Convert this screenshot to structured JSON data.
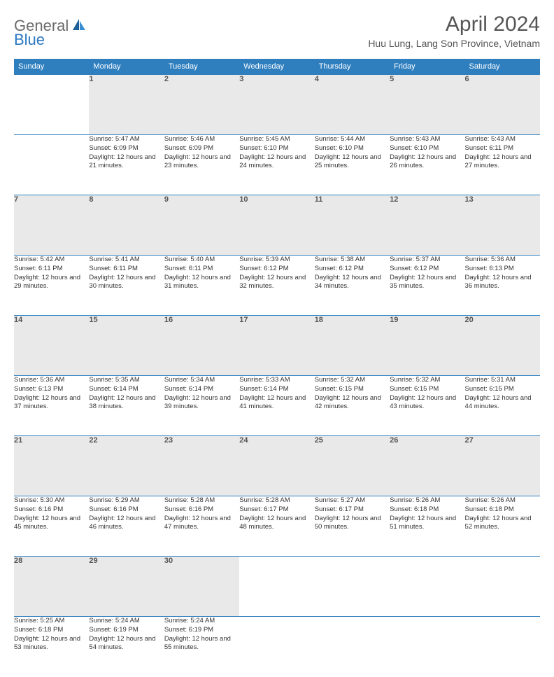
{
  "logo": {
    "general": "General",
    "blue": "Blue"
  },
  "title": "April 2024",
  "location": "Huu Lung, Lang Son Province, Vietnam",
  "colors": {
    "header_bg": "#2f7fbf",
    "header_text": "#ffffff",
    "daynum_bg": "#e9e9e9",
    "border": "#2f7fbf",
    "title_color": "#555555",
    "logo_gray": "#6a6a6a",
    "logo_blue": "#2b78c2"
  },
  "dayNames": [
    "Sunday",
    "Monday",
    "Tuesday",
    "Wednesday",
    "Thursday",
    "Friday",
    "Saturday"
  ],
  "weeks": [
    [
      null,
      {
        "n": "1",
        "sr": "5:47 AM",
        "ss": "6:09 PM",
        "dl": "12 hours and 21 minutes."
      },
      {
        "n": "2",
        "sr": "5:46 AM",
        "ss": "6:09 PM",
        "dl": "12 hours and 23 minutes."
      },
      {
        "n": "3",
        "sr": "5:45 AM",
        "ss": "6:10 PM",
        "dl": "12 hours and 24 minutes."
      },
      {
        "n": "4",
        "sr": "5:44 AM",
        "ss": "6:10 PM",
        "dl": "12 hours and 25 minutes."
      },
      {
        "n": "5",
        "sr": "5:43 AM",
        "ss": "6:10 PM",
        "dl": "12 hours and 26 minutes."
      },
      {
        "n": "6",
        "sr": "5:43 AM",
        "ss": "6:11 PM",
        "dl": "12 hours and 27 minutes."
      }
    ],
    [
      {
        "n": "7",
        "sr": "5:42 AM",
        "ss": "6:11 PM",
        "dl": "12 hours and 29 minutes."
      },
      {
        "n": "8",
        "sr": "5:41 AM",
        "ss": "6:11 PM",
        "dl": "12 hours and 30 minutes."
      },
      {
        "n": "9",
        "sr": "5:40 AM",
        "ss": "6:11 PM",
        "dl": "12 hours and 31 minutes."
      },
      {
        "n": "10",
        "sr": "5:39 AM",
        "ss": "6:12 PM",
        "dl": "12 hours and 32 minutes."
      },
      {
        "n": "11",
        "sr": "5:38 AM",
        "ss": "6:12 PM",
        "dl": "12 hours and 34 minutes."
      },
      {
        "n": "12",
        "sr": "5:37 AM",
        "ss": "6:12 PM",
        "dl": "12 hours and 35 minutes."
      },
      {
        "n": "13",
        "sr": "5:36 AM",
        "ss": "6:13 PM",
        "dl": "12 hours and 36 minutes."
      }
    ],
    [
      {
        "n": "14",
        "sr": "5:36 AM",
        "ss": "6:13 PM",
        "dl": "12 hours and 37 minutes."
      },
      {
        "n": "15",
        "sr": "5:35 AM",
        "ss": "6:14 PM",
        "dl": "12 hours and 38 minutes."
      },
      {
        "n": "16",
        "sr": "5:34 AM",
        "ss": "6:14 PM",
        "dl": "12 hours and 39 minutes."
      },
      {
        "n": "17",
        "sr": "5:33 AM",
        "ss": "6:14 PM",
        "dl": "12 hours and 41 minutes."
      },
      {
        "n": "18",
        "sr": "5:32 AM",
        "ss": "6:15 PM",
        "dl": "12 hours and 42 minutes."
      },
      {
        "n": "19",
        "sr": "5:32 AM",
        "ss": "6:15 PM",
        "dl": "12 hours and 43 minutes."
      },
      {
        "n": "20",
        "sr": "5:31 AM",
        "ss": "6:15 PM",
        "dl": "12 hours and 44 minutes."
      }
    ],
    [
      {
        "n": "21",
        "sr": "5:30 AM",
        "ss": "6:16 PM",
        "dl": "12 hours and 45 minutes."
      },
      {
        "n": "22",
        "sr": "5:29 AM",
        "ss": "6:16 PM",
        "dl": "12 hours and 46 minutes."
      },
      {
        "n": "23",
        "sr": "5:28 AM",
        "ss": "6:16 PM",
        "dl": "12 hours and 47 minutes."
      },
      {
        "n": "24",
        "sr": "5:28 AM",
        "ss": "6:17 PM",
        "dl": "12 hours and 48 minutes."
      },
      {
        "n": "25",
        "sr": "5:27 AM",
        "ss": "6:17 PM",
        "dl": "12 hours and 50 minutes."
      },
      {
        "n": "26",
        "sr": "5:26 AM",
        "ss": "6:18 PM",
        "dl": "12 hours and 51 minutes."
      },
      {
        "n": "27",
        "sr": "5:26 AM",
        "ss": "6:18 PM",
        "dl": "12 hours and 52 minutes."
      }
    ],
    [
      {
        "n": "28",
        "sr": "5:25 AM",
        "ss": "6:18 PM",
        "dl": "12 hours and 53 minutes."
      },
      {
        "n": "29",
        "sr": "5:24 AM",
        "ss": "6:19 PM",
        "dl": "12 hours and 54 minutes."
      },
      {
        "n": "30",
        "sr": "5:24 AM",
        "ss": "6:19 PM",
        "dl": "12 hours and 55 minutes."
      },
      null,
      null,
      null,
      null
    ]
  ],
  "labels": {
    "sunrise": "Sunrise:",
    "sunset": "Sunset:",
    "daylight": "Daylight:"
  }
}
